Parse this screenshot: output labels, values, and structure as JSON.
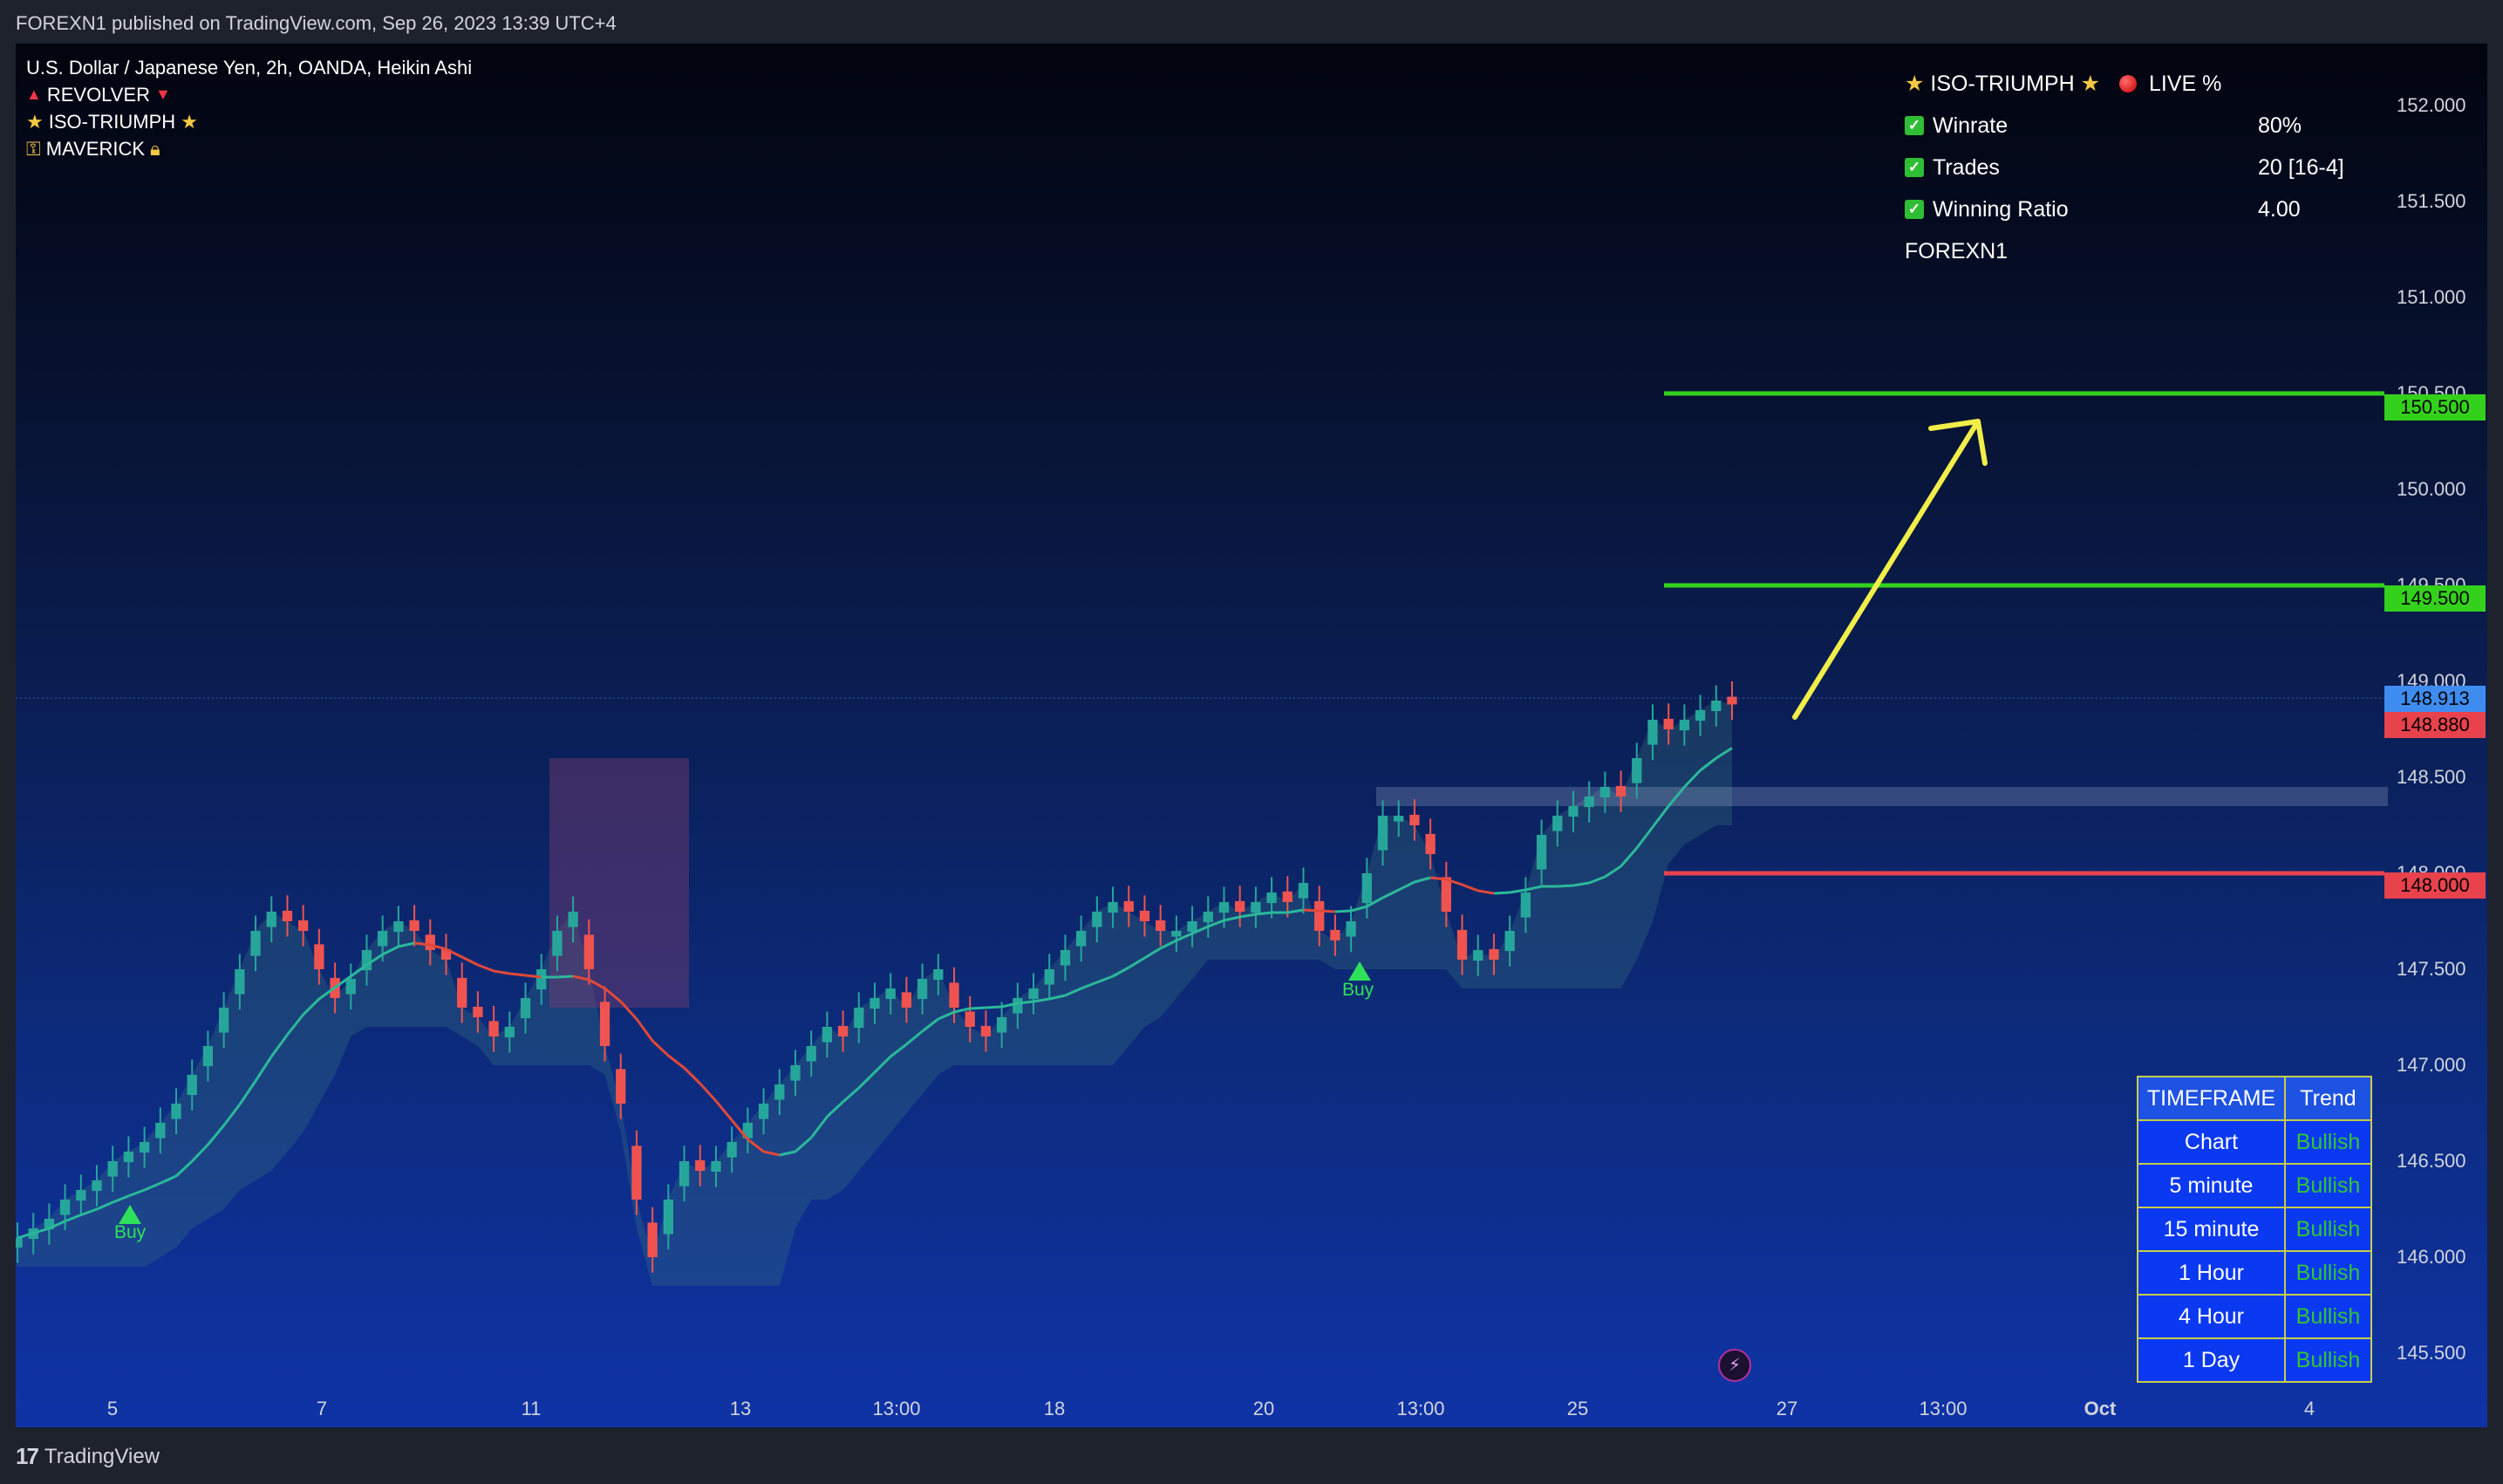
{
  "header": {
    "published": "FOREXN1 published on TradingView.com, Sep 26, 2023 13:39 UTC+4"
  },
  "footer": {
    "brand": "TradingView",
    "logo_mark": "17"
  },
  "legend": {
    "symbol": "U.S. Dollar / Japanese Yen, 2h, OANDA, Heikin Ashi",
    "indicators": [
      "REVOLVER",
      "ISO-TRIUMPH",
      "MAVERICK"
    ]
  },
  "stats": {
    "title": "ISO-TRIUMPH",
    "live": "LIVE %",
    "rows": [
      {
        "label": "Winrate",
        "value": "80%"
      },
      {
        "label": "Trades",
        "value": "20 [16-4]"
      },
      {
        "label": "Winning Ratio",
        "value": "4.00"
      }
    ],
    "author": "FOREXN1"
  },
  "price_axis": {
    "ticks": [
      "152.000",
      "151.500",
      "151.000",
      "150.500",
      "150.000",
      "149.500",
      "149.000",
      "148.500",
      "148.000",
      "147.500",
      "147.000",
      "146.500",
      "146.000",
      "145.500"
    ],
    "tags": [
      {
        "price": 150.5,
        "label": "150.500",
        "color": "#34d11c"
      },
      {
        "price": 149.5,
        "label": "149.500",
        "color": "#34d11c"
      },
      {
        "price": 148.913,
        "label": "148.913",
        "color": "#3f8cf0"
      },
      {
        "price": 148.88,
        "label": "148.880",
        "color": "#e8424c"
      },
      {
        "price": 148.0,
        "label": "148.000",
        "color": "#e8424c"
      }
    ]
  },
  "time_axis": {
    "ticks": [
      "5",
      "7",
      "11",
      "13",
      "13:00",
      "18",
      "20",
      "13:00",
      "25",
      "27",
      "13:00",
      "Oct",
      "4"
    ]
  },
  "levels": [
    {
      "price": 150.5,
      "color": "#34d11c"
    },
    {
      "price": 149.5,
      "color": "#34d11c"
    },
    {
      "price": 148.0,
      "color": "#e8424c"
    }
  ],
  "signals": [
    {
      "label": "Buy"
    },
    {
      "label": "Buy"
    }
  ],
  "timeframe_table": {
    "headers": [
      "TIMEFRAME",
      "Trend"
    ],
    "rows": [
      [
        "Chart",
        "Bullish"
      ],
      [
        "5 minute",
        "Bullish"
      ],
      [
        "15 minute",
        "Bullish"
      ],
      [
        "1 Hour",
        "Bullish"
      ],
      [
        "4 Hour",
        "Bullish"
      ],
      [
        "1 Day",
        "Bullish"
      ]
    ]
  },
  "chart_data": {
    "type": "candlestick",
    "symbol": "USDJPY",
    "timeframe": "2h",
    "ylim": [
      145.3,
      152.3
    ],
    "bullish_color": "#26a69a",
    "bearish_color": "#ef5350",
    "last_price": 148.913,
    "close_price": 148.88,
    "closes": [
      146.1,
      146.15,
      146.2,
      146.3,
      146.35,
      146.4,
      146.5,
      146.55,
      146.6,
      146.7,
      146.8,
      146.95,
      147.1,
      147.3,
      147.5,
      147.7,
      147.8,
      147.75,
      147.7,
      147.5,
      147.35,
      147.45,
      147.6,
      147.7,
      147.75,
      147.7,
      147.6,
      147.55,
      147.3,
      147.25,
      147.15,
      147.2,
      147.35,
      147.5,
      147.7,
      147.8,
      147.5,
      147.1,
      146.8,
      146.3,
      146.0,
      146.3,
      146.5,
      146.45,
      146.5,
      146.6,
      146.7,
      146.8,
      146.9,
      147.0,
      147.1,
      147.2,
      147.15,
      147.3,
      147.35,
      147.4,
      147.3,
      147.45,
      147.5,
      147.3,
      147.2,
      147.15,
      147.25,
      147.35,
      147.4,
      147.5,
      147.6,
      147.7,
      147.8,
      147.85,
      147.8,
      147.75,
      147.7,
      147.7,
      147.75,
      147.8,
      147.85,
      147.8,
      147.85,
      147.9,
      147.85,
      147.95,
      147.7,
      147.65,
      147.75,
      148.0,
      148.3,
      148.3,
      148.25,
      148.1,
      147.8,
      147.55,
      147.6,
      147.55,
      147.7,
      147.9,
      148.2,
      148.3,
      148.35,
      148.4,
      148.45,
      148.4,
      148.6,
      148.8,
      148.75,
      148.8,
      148.85,
      148.9,
      148.88
    ]
  }
}
